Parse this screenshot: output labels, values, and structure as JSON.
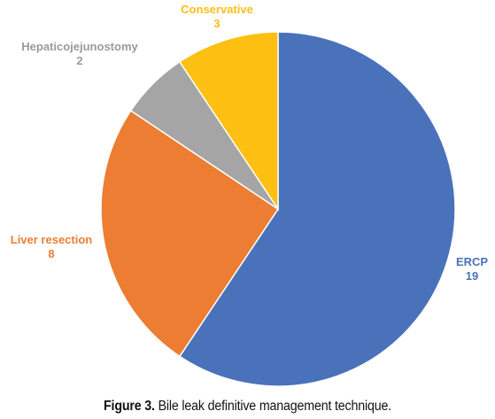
{
  "chart_data": {
    "type": "pie",
    "title": "",
    "slices": [
      {
        "label": "ERCP",
        "value": 19,
        "color": "#4a72bb"
      },
      {
        "label": "Liver resection",
        "value": 8,
        "color": "#ec7d32"
      },
      {
        "label": "Hepaticojejunostomy",
        "value": 2,
        "color": "#a5a5a5"
      },
      {
        "label": "Conservative",
        "value": 3,
        "color": "#fdbf12"
      }
    ]
  },
  "caption": {
    "prefix": "Figure 3.",
    "text": " Bile leak definitive management technique."
  }
}
